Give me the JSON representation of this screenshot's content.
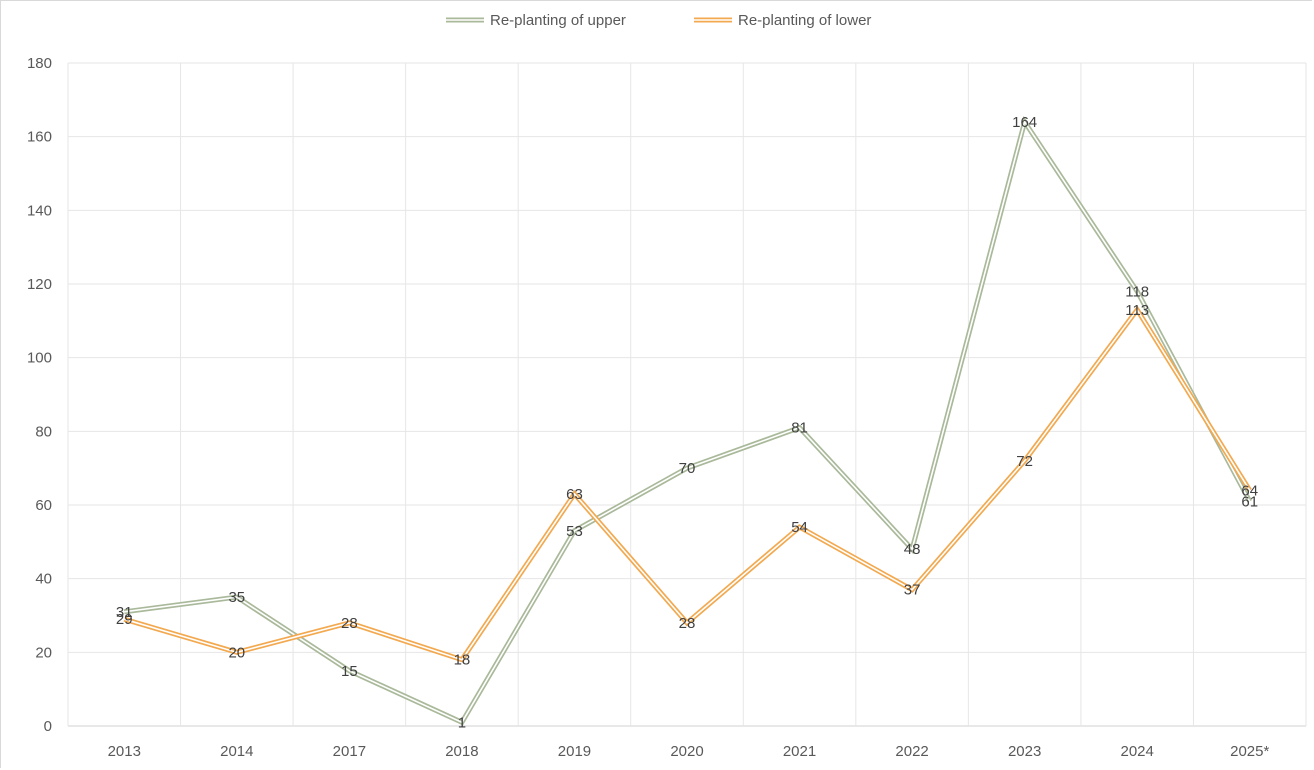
{
  "chart_data": {
    "type": "line",
    "categories": [
      "2013",
      "2014",
      "2017",
      "2018",
      "2019",
      "2020",
      "2021",
      "2022",
      "2023",
      "2024",
      "2025*"
    ],
    "series": [
      {
        "name": "Re-planting of upper",
        "values": [
          31,
          35,
          15,
          1,
          53,
          70,
          81,
          48,
          164,
          118,
          61
        ],
        "color": "#a9b99a"
      },
      {
        "name": "Re-planting of lower",
        "values": [
          29,
          20,
          28,
          18,
          63,
          28,
          54,
          37,
          72,
          113,
          64
        ],
        "color": "#f2a950"
      }
    ],
    "y_ticks": [
      "0",
      "20",
      "40",
      "60",
      "80",
      "100",
      "120",
      "140",
      "160",
      "180"
    ],
    "ylim": [
      0,
      180
    ],
    "grid": true,
    "legend_position": "top",
    "data_labels": true
  }
}
